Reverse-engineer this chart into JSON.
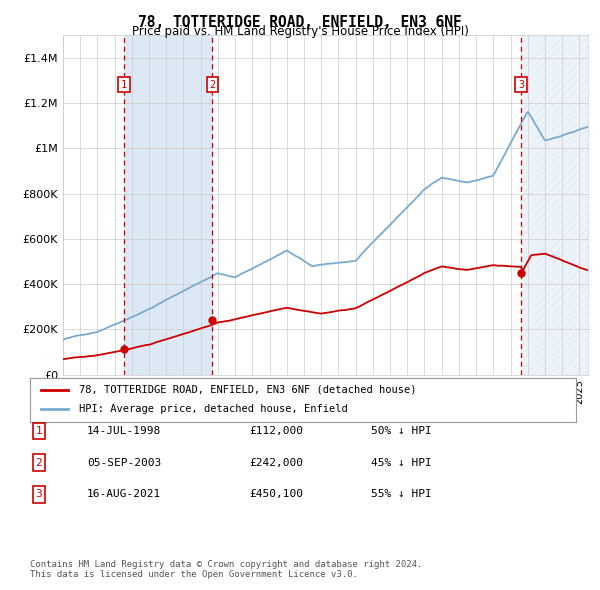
{
  "title": "78, TOTTERIDGE ROAD, ENFIELD, EN3 6NF",
  "subtitle": "Price paid vs. HM Land Registry's House Price Index (HPI)",
  "ylabel_ticks": [
    "£0",
    "£200K",
    "£400K",
    "£600K",
    "£800K",
    "£1M",
    "£1.2M",
    "£1.4M"
  ],
  "ytick_values": [
    0,
    200000,
    400000,
    600000,
    800000,
    1000000,
    1200000,
    1400000
  ],
  "ylim": [
    0,
    1500000
  ],
  "xlim_start": 1995.0,
  "xlim_end": 2025.5,
  "sale_dates": [
    1998.54,
    2003.68,
    2021.62
  ],
  "sale_prices": [
    112000,
    242000,
    450100
  ],
  "sale_labels": [
    "1",
    "2",
    "3"
  ],
  "red_line_color": "#cc0000",
  "blue_line_color": "#7aabcf",
  "highlight_fill_color": "#dce9f5",
  "dashed_line_color": "#cc0000",
  "marker_color": "#cc0000",
  "box_color": "#cc0000",
  "legend_label_red": "78, TOTTERIDGE ROAD, ENFIELD, EN3 6NF (detached house)",
  "legend_label_blue": "HPI: Average price, detached house, Enfield",
  "table_rows": [
    [
      "1",
      "14-JUL-1998",
      "£112,000",
      "50% ↓ HPI"
    ],
    [
      "2",
      "05-SEP-2003",
      "£242,000",
      "45% ↓ HPI"
    ],
    [
      "3",
      "16-AUG-2021",
      "£450,100",
      "55% ↓ HPI"
    ]
  ],
  "footer": "Contains HM Land Registry data © Crown copyright and database right 2024.\nThis data is licensed under the Open Government Licence v3.0.",
  "background_color": "#ffffff",
  "grid_color": "#cccccc"
}
